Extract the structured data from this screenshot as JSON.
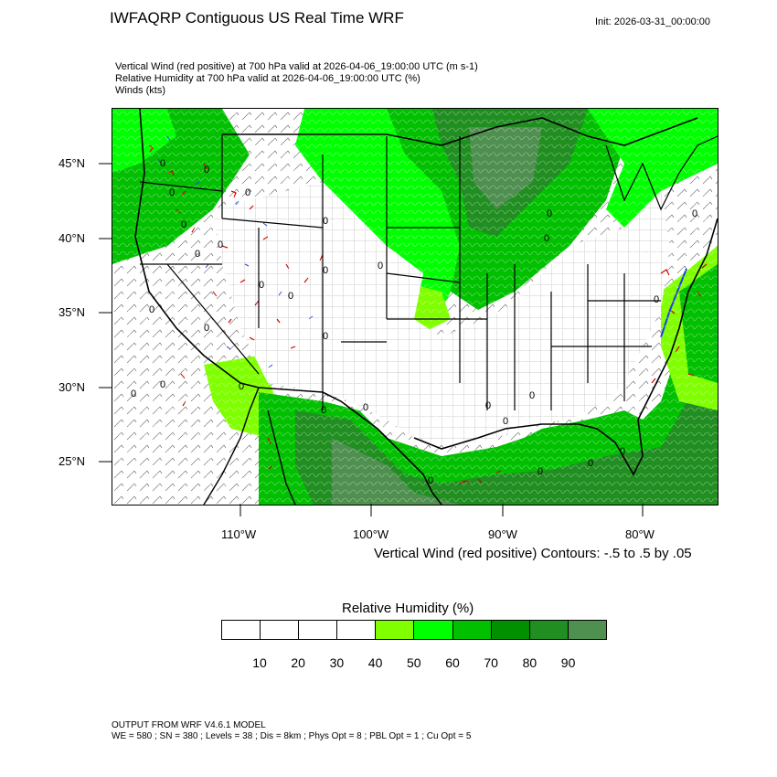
{
  "header": {
    "title": "IWFAQRP Contiguous US Real Time WRF",
    "init": "Init: 2026-03-31_00:00:00"
  },
  "fields": [
    "Vertical Wind (red positive) at 700 hPa valid at 2026-04-06_19:00:00 UTC   (m s-1)",
    "Relative Humidity at 700 hPa valid at 2026-04-06_19:00:00 UTC   (%)",
    "Winds   (kts)"
  ],
  "map": {
    "lat_labels": [
      "45°N",
      "40°N",
      "35°N",
      "30°N",
      "25°N"
    ],
    "lon_labels": [
      "110°W",
      "100°W",
      "90°W",
      "80°W"
    ],
    "contour_zero_label": "0",
    "colors": {
      "rh_40_50": "#80ff00",
      "rh_50_60": "#00ff00",
      "rh_60_70": "#00c000",
      "rh_70_80": "#009000",
      "rh_80_90": "#208e20",
      "rh_90_100": "#4f8f4f",
      "upward": "#d00000",
      "downward": "#2040e0",
      "borders": "#000000",
      "contours": "#ffffff"
    }
  },
  "contour_note": "Vertical Wind (red positive) Contours: -.5 to .5 by .05",
  "colorbar": {
    "title": "Relative Humidity  (%)",
    "labels": [
      "10",
      "20",
      "30",
      "40",
      "50",
      "60",
      "70",
      "80",
      "90"
    ],
    "colors": [
      "#ffffff",
      "#ffffff",
      "#ffffff",
      "#ffffff",
      "#80ff00",
      "#00ff00",
      "#00c000",
      "#009000",
      "#208e20",
      "#4f8f4f"
    ]
  },
  "footer": {
    "line1": "OUTPUT FROM WRF V4.6.1 MODEL",
    "line2": "WE = 580 ; SN = 380 ; Levels = 38 ; Dis = 8km ; Phys Opt = 8 ; PBL Opt = 1 ; Cu Opt = 5"
  }
}
